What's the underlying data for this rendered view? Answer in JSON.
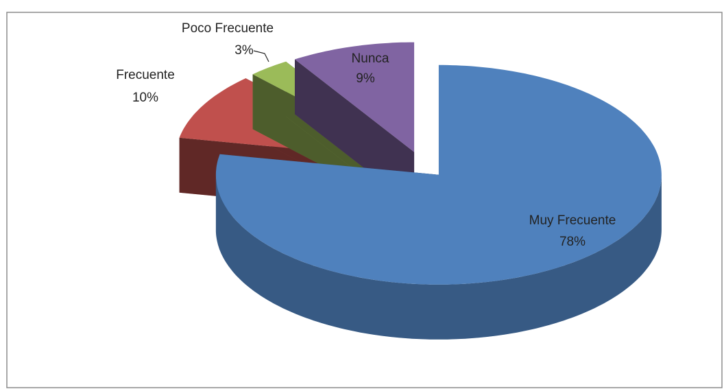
{
  "chart_data": {
    "type": "pie",
    "categories": [
      "Muy Frecuente",
      "Frecuente",
      "Poco Frecuente",
      "Nunca"
    ],
    "values": [
      78,
      10,
      3,
      9
    ],
    "value_labels": [
      "78%",
      "10%",
      "3%",
      "9%"
    ],
    "colors": [
      "#4f81bd",
      "#c0504d",
      "#9bbb59",
      "#8064a2"
    ]
  }
}
